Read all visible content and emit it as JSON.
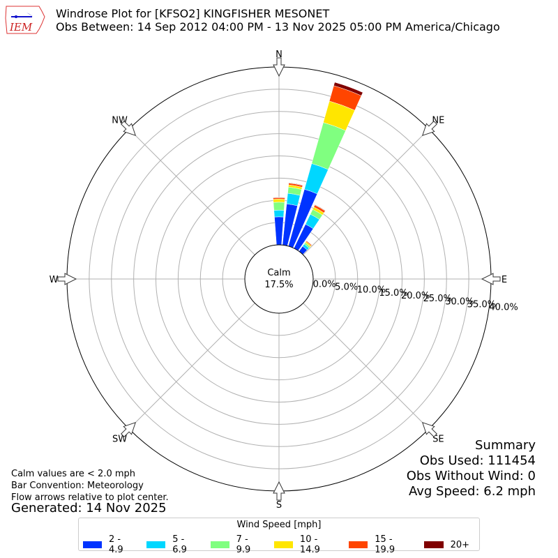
{
  "header": {
    "logo_text": "IEM",
    "title_line1": "Windrose Plot for [KFSO2] KINGFISHER MESONET",
    "title_line2": "Obs Between: 14 Sep 2012 04:00 PM - 13 Nov 2025 05:00 PM America/Chicago"
  },
  "notes": {
    "line1": "Calm values are < 2.0 mph",
    "line2": "Bar Convention: Meteorology",
    "line3": "Flow arrows relative to plot center.",
    "generated": "Generated: 14 Nov 2025"
  },
  "summary": {
    "title": "Summary",
    "obs_used": "Obs Used: 111454",
    "obs_without_wind": "Obs Without Wind: 0",
    "avg_speed": "Avg Speed: 6.2 mph"
  },
  "calm": {
    "label": "Calm",
    "value": "17.5%"
  },
  "chart_data": {
    "type": "windrose",
    "directions": [
      "N",
      "NE",
      "E",
      "SE",
      "S",
      "SW",
      "W",
      "NW"
    ],
    "ring_labels": [
      "0.0%",
      "5.0%",
      "10.0%",
      "15.0%",
      "20.0%",
      "25.0%",
      "30.0%",
      "35.0%",
      "40.0%"
    ],
    "rlim": [
      0,
      40
    ],
    "legend_title": "Wind Speed [mph]",
    "legend_position": "bottom",
    "bins": [
      "2 - 4.9",
      "5 - 6.9",
      "7 - 9.9",
      "10 - 14.9",
      "15 - 19.9",
      "20+"
    ],
    "colors": [
      "#0033ff",
      "#00d7ff",
      "#80ff80",
      "#ffe600",
      "#ff4500",
      "#800000"
    ],
    "units": "cumulative percent",
    "bars": [
      {
        "direction_deg": 0,
        "cumulative": [
          6.3,
          7.8,
          9.6,
          10.3,
          10.6,
          10.7
        ]
      },
      {
        "direction_deg": 10,
        "cumulative": [
          9.3,
          11.7,
          13.1,
          13.6,
          14.0,
          14.1
        ]
      },
      {
        "direction_deg": 20,
        "cumulative": [
          13.3,
          19.3,
          28.9,
          33.9,
          37.5,
          38.3
        ]
      },
      {
        "direction_deg": 30,
        "cumulative": [
          6.0,
          8.5,
          9.7,
          10.3,
          10.8,
          10.9
        ]
      },
      {
        "direction_deg": 40,
        "cumulative": [
          1.4,
          2.0,
          2.4,
          2.7,
          2.9,
          2.95
        ]
      }
    ]
  }
}
